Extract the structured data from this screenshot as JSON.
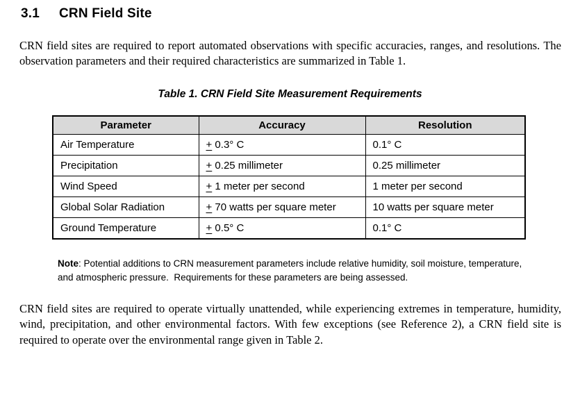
{
  "heading": {
    "number": "3.1",
    "title": "CRN Field Site"
  },
  "paragraphs": {
    "intro": "CRN field sites are required to report automated observations with specific accuracies, ranges, and resolutions.  The observation parameters and their required characteristics are summarized in Table 1.",
    "operation": "CRN field sites are required to operate virtually unattended, while experiencing extremes in temperature, humidity, wind, precipitation, and other environmental factors.  With few exceptions (see Reference 2), a CRN field site is required to operate over the environmental range given in Table 2."
  },
  "table": {
    "title": "Table 1. CRN Field Site Measurement Requirements",
    "headers": [
      "Parameter",
      "Accuracy",
      "Resolution"
    ],
    "rows": [
      {
        "parameter": "Air Temperature",
        "accuracy_sign": "+",
        "accuracy": "0.3° C",
        "resolution": "0.1° C"
      },
      {
        "parameter": "Precipitation",
        "accuracy_sign": "+",
        "accuracy": "0.25 millimeter",
        "resolution": "0.25 millimeter"
      },
      {
        "parameter": "Wind Speed",
        "accuracy_sign": "+",
        "accuracy": "1 meter per second",
        "resolution": "1 meter per second"
      },
      {
        "parameter": "Global Solar Radiation",
        "accuracy_sign": "+",
        "accuracy": "70 watts per square meter",
        "resolution": "10 watts per square meter"
      },
      {
        "parameter": "Ground Temperature",
        "accuracy_sign": "+",
        "accuracy": "0.5° C",
        "resolution": "0.1° C"
      }
    ]
  },
  "note": {
    "label": "Note",
    "text": ": Potential additions to CRN measurement parameters include relative humidity, soil moisture, temperature, and atmospheric pressure.  Requirements for these parameters are being assessed."
  },
  "colors": {
    "header_bg": "#d9d9d9",
    "border": "#000000",
    "text": "#000000"
  }
}
